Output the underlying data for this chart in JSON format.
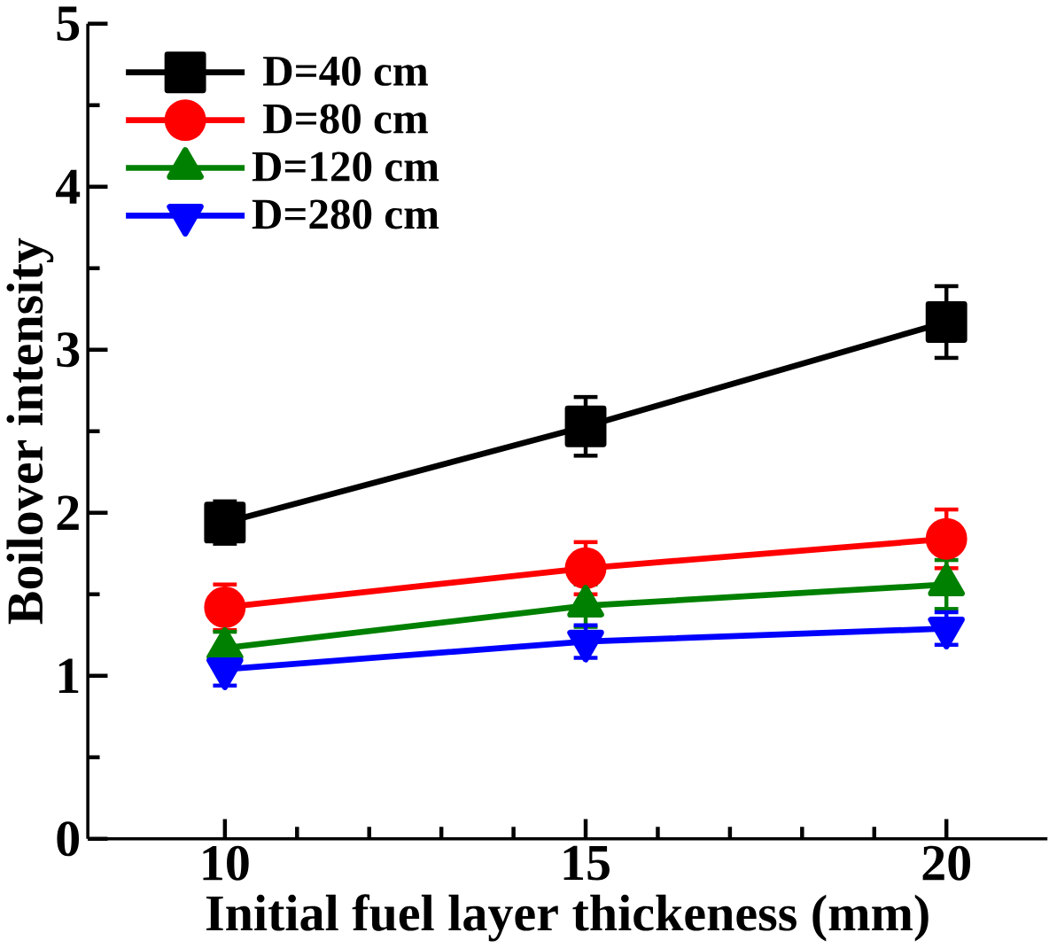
{
  "chart_data": {
    "type": "line",
    "xlabel": "Initial fuel layer thickeness (mm)",
    "ylabel": "Boilover intensity",
    "x": [
      10,
      15,
      20
    ],
    "xlim": [
      8.1,
      21.4
    ],
    "xticks": [
      10,
      15,
      20
    ],
    "ylim": [
      0,
      5
    ],
    "yticks": [
      0,
      1,
      2,
      3,
      4,
      5
    ],
    "legend": "top left",
    "line_style": "solid",
    "grid": false,
    "series": [
      {
        "name": "D=40 cm",
        "color": "#000000",
        "marker": "square",
        "values": [
          1.94,
          2.53,
          3.17
        ],
        "errors": [
          0.13,
          0.18,
          0.22
        ]
      },
      {
        "name": "D=80 cm",
        "color": "#ff0000",
        "marker": "circle",
        "values": [
          1.42,
          1.66,
          1.84
        ],
        "errors": [
          0.14,
          0.16,
          0.18
        ]
      },
      {
        "name": "D=120 cm",
        "color": "#008000",
        "marker": "triangle",
        "values": [
          1.17,
          1.43,
          1.56
        ],
        "errors": [
          0.1,
          0.13,
          0.15
        ]
      },
      {
        "name": "D=280 cm",
        "color": "#0000ff",
        "marker": "triangle down",
        "values": [
          1.04,
          1.21,
          1.29
        ],
        "errors": [
          0.1,
          0.1,
          0.1
        ]
      }
    ]
  }
}
